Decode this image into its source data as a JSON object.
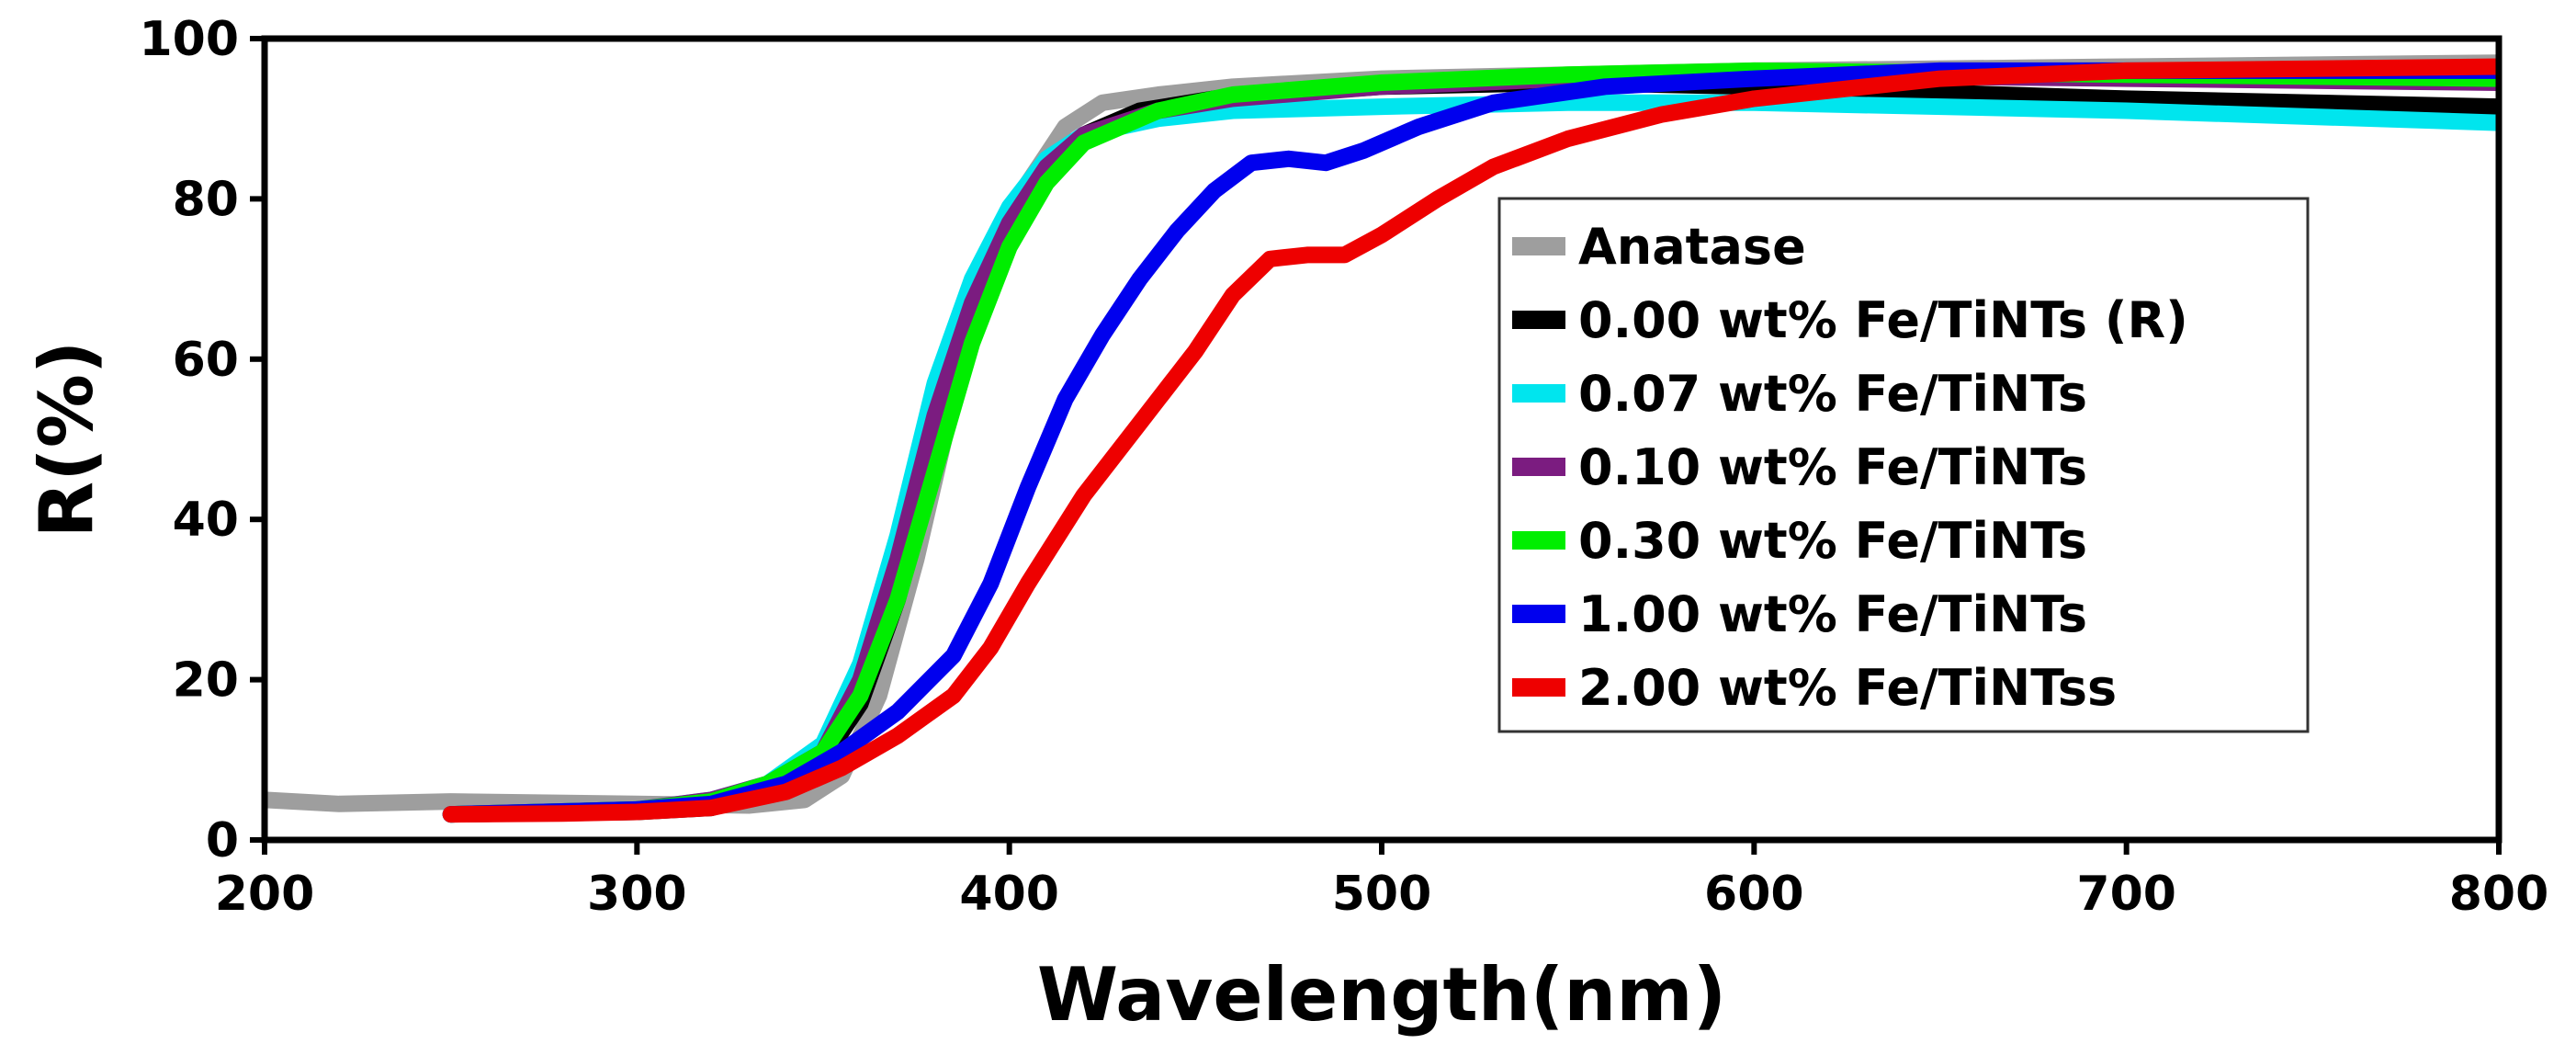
{
  "chart_data": {
    "type": "line",
    "title": "",
    "xlabel": "Wavelength(nm)",
    "ylabel": "R(%)",
    "xlim": [
      200,
      800
    ],
    "ylim": [
      0,
      100
    ],
    "xticks": [
      200,
      300,
      400,
      500,
      600,
      700,
      800
    ],
    "yticks": [
      0,
      20,
      40,
      60,
      80,
      100
    ],
    "legend_position": "center-right",
    "series": [
      {
        "name": "Anatase",
        "color": "#9e9e9e",
        "points": [
          [
            200,
            5
          ],
          [
            220,
            4.5
          ],
          [
            250,
            4.8
          ],
          [
            300,
            4.5
          ],
          [
            330,
            4.3
          ],
          [
            345,
            5
          ],
          [
            355,
            8
          ],
          [
            365,
            18
          ],
          [
            375,
            35
          ],
          [
            385,
            55
          ],
          [
            395,
            72
          ],
          [
            405,
            82
          ],
          [
            415,
            89
          ],
          [
            425,
            92
          ],
          [
            440,
            93
          ],
          [
            460,
            94
          ],
          [
            480,
            94.5
          ],
          [
            500,
            95
          ],
          [
            550,
            95.5
          ],
          [
            600,
            96
          ],
          [
            700,
            96.5
          ],
          [
            800,
            97
          ]
        ]
      },
      {
        "name": "0.00 wt% Fe/TiNTs (R)",
        "color": "#000000",
        "points": [
          [
            250,
            3.2
          ],
          [
            300,
            3.5
          ],
          [
            320,
            4
          ],
          [
            335,
            6
          ],
          [
            350,
            10
          ],
          [
            360,
            17
          ],
          [
            370,
            30
          ],
          [
            380,
            48
          ],
          [
            390,
            65
          ],
          [
            400,
            77
          ],
          [
            410,
            84
          ],
          [
            420,
            88
          ],
          [
            435,
            91
          ],
          [
            455,
            92.5
          ],
          [
            500,
            94
          ],
          [
            550,
            94.5
          ],
          [
            600,
            94
          ],
          [
            700,
            92.5
          ],
          [
            800,
            91.5
          ]
        ]
      },
      {
        "name": "0.07 wt% Fe/TiNTs",
        "color": "#00e5ee",
        "points": [
          [
            250,
            3.2
          ],
          [
            300,
            3.8
          ],
          [
            320,
            5
          ],
          [
            335,
            7
          ],
          [
            350,
            12
          ],
          [
            360,
            22
          ],
          [
            370,
            38
          ],
          [
            380,
            57
          ],
          [
            390,
            70
          ],
          [
            400,
            79
          ],
          [
            410,
            85
          ],
          [
            420,
            88
          ],
          [
            440,
            90
          ],
          [
            460,
            91
          ],
          [
            500,
            91.5
          ],
          [
            550,
            92
          ],
          [
            600,
            92
          ],
          [
            700,
            91
          ],
          [
            800,
            89.5
          ]
        ]
      },
      {
        "name": "0.10 wt% Fe/TiNTs",
        "color": "#7b1c80",
        "points": [
          [
            250,
            3.2
          ],
          [
            300,
            3.8
          ],
          [
            320,
            5
          ],
          [
            335,
            7
          ],
          [
            350,
            11
          ],
          [
            360,
            20
          ],
          [
            370,
            35
          ],
          [
            380,
            53
          ],
          [
            390,
            67
          ],
          [
            400,
            77
          ],
          [
            410,
            84
          ],
          [
            420,
            88
          ],
          [
            440,
            91
          ],
          [
            460,
            92.5
          ],
          [
            500,
            94
          ],
          [
            550,
            95
          ],
          [
            600,
            95.5
          ],
          [
            700,
            95
          ],
          [
            800,
            94.5
          ]
        ]
      },
      {
        "name": "0.30 wt% Fe/TiNTs",
        "color": "#00ee00",
        "points": [
          [
            250,
            3.2
          ],
          [
            300,
            3.8
          ],
          [
            320,
            4.8
          ],
          [
            335,
            7
          ],
          [
            350,
            11
          ],
          [
            360,
            18
          ],
          [
            370,
            30
          ],
          [
            380,
            46
          ],
          [
            390,
            62
          ],
          [
            400,
            74
          ],
          [
            410,
            82
          ],
          [
            420,
            87
          ],
          [
            440,
            91
          ],
          [
            460,
            93
          ],
          [
            500,
            94.5
          ],
          [
            550,
            95.5
          ],
          [
            600,
            96
          ],
          [
            700,
            95.5
          ],
          [
            800,
            95
          ]
        ]
      },
      {
        "name": "1.00 wt% Fe/TiNTs",
        "color": "#0000ee",
        "points": [
          [
            250,
            3.2
          ],
          [
            300,
            3.8
          ],
          [
            320,
            4.5
          ],
          [
            340,
            7
          ],
          [
            355,
            11
          ],
          [
            370,
            16
          ],
          [
            385,
            23
          ],
          [
            395,
            32
          ],
          [
            405,
            44
          ],
          [
            415,
            55
          ],
          [
            425,
            63
          ],
          [
            435,
            70
          ],
          [
            445,
            76
          ],
          [
            455,
            81
          ],
          [
            465,
            84.5
          ],
          [
            475,
            85
          ],
          [
            485,
            84.5
          ],
          [
            495,
            86
          ],
          [
            510,
            89
          ],
          [
            530,
            92
          ],
          [
            560,
            94
          ],
          [
            600,
            95
          ],
          [
            650,
            96
          ],
          [
            700,
            96
          ],
          [
            800,
            96
          ]
        ]
      },
      {
        "name": "2.00 wt% Fe/TiNTss",
        "color": "#ee0000",
        "points": [
          [
            250,
            3.2
          ],
          [
            280,
            3.3
          ],
          [
            300,
            3.5
          ],
          [
            320,
            4
          ],
          [
            340,
            6
          ],
          [
            355,
            9
          ],
          [
            370,
            13
          ],
          [
            385,
            18
          ],
          [
            395,
            24
          ],
          [
            405,
            32
          ],
          [
            420,
            43
          ],
          [
            435,
            52
          ],
          [
            450,
            61
          ],
          [
            460,
            68
          ],
          [
            470,
            72.5
          ],
          [
            480,
            73
          ],
          [
            490,
            73
          ],
          [
            500,
            75.5
          ],
          [
            515,
            80
          ],
          [
            530,
            84
          ],
          [
            550,
            87.5
          ],
          [
            575,
            90.5
          ],
          [
            600,
            92.5
          ],
          [
            650,
            95
          ],
          [
            700,
            96
          ],
          [
            800,
            96.5
          ]
        ]
      }
    ]
  }
}
